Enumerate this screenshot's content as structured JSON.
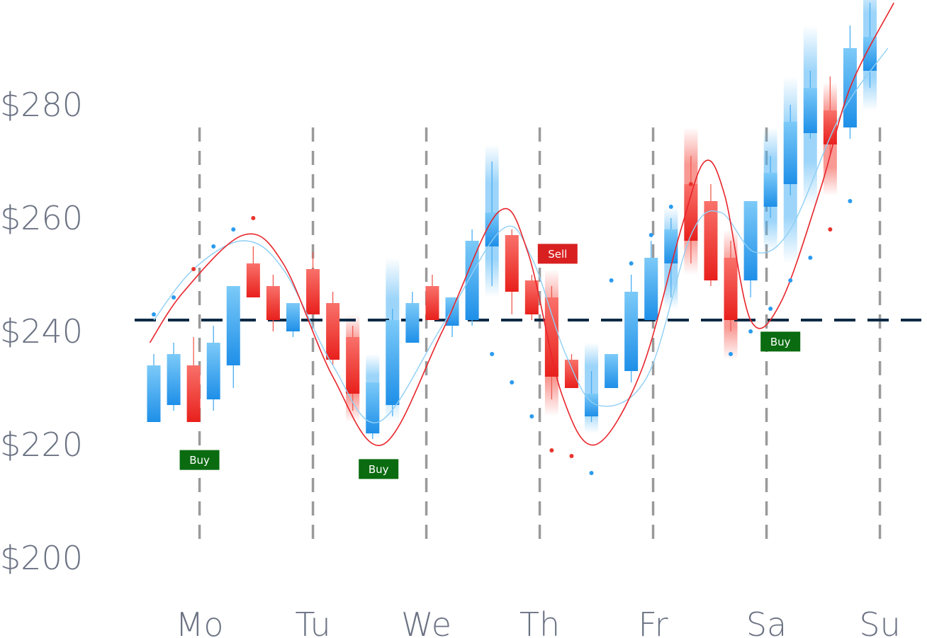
{
  "chart_data": {
    "type": "candlestick",
    "x_axis": {
      "tick_labels": [
        "Mo",
        "Tu",
        "We",
        "Th",
        "Fr",
        "Sa",
        "Su"
      ],
      "tick_positions": [
        2.3,
        8.0,
        13.7,
        19.4,
        25.1,
        30.8,
        36.5
      ]
    },
    "y_axis": {
      "tick_values": [
        200,
        220,
        240,
        260,
        280
      ],
      "tick_labels": [
        "$200",
        "$220",
        "$240",
        "$260",
        "$280"
      ],
      "range": [
        200,
        280
      ]
    },
    "grid": "dashed vertical lines at each day",
    "reference_line": {
      "value": 242,
      "style": "dashed",
      "color": "#0d2a45"
    },
    "colors": {
      "up": "#2196f3",
      "down": "#f03a2c",
      "trend": "#e8242a",
      "smooth": "#8fcff5",
      "buy_label": "#0a6b10",
      "sell_label": "#d92020"
    },
    "candles": [
      {
        "i": 0,
        "open": 224,
        "close": 234,
        "high": 236,
        "low": 224
      },
      {
        "i": 1,
        "open": 227,
        "close": 236,
        "high": 238,
        "low": 226
      },
      {
        "i": 2,
        "open": 234,
        "close": 224,
        "high": 239,
        "low": 224
      },
      {
        "i": 3,
        "open": 228,
        "close": 238,
        "high": 241,
        "low": 226
      },
      {
        "i": 4,
        "open": 234,
        "close": 248,
        "high": 248,
        "low": 230
      },
      {
        "i": 5,
        "open": 252,
        "close": 246,
        "high": 255,
        "low": 246
      },
      {
        "i": 6,
        "open": 248,
        "close": 242,
        "high": 250,
        "low": 240
      },
      {
        "i": 7,
        "open": 240,
        "close": 245,
        "high": 245,
        "low": 239
      },
      {
        "i": 8,
        "open": 251,
        "close": 243,
        "high": 254,
        "low": 243
      },
      {
        "i": 9,
        "open": 245,
        "close": 235,
        "high": 247,
        "low": 234
      },
      {
        "i": 10,
        "open": 239,
        "close": 229,
        "high": 241,
        "low": 226
      },
      {
        "i": 11,
        "open": 222,
        "close": 231,
        "high": 231,
        "low": 221
      },
      {
        "i": 12,
        "open": 227,
        "close": 242,
        "high": 244,
        "low": 225
      },
      {
        "i": 13,
        "open": 238,
        "close": 245,
        "high": 247,
        "low": 238
      },
      {
        "i": 14,
        "open": 248,
        "close": 242,
        "high": 250,
        "low": 242
      },
      {
        "i": 15,
        "open": 241,
        "close": 246,
        "high": 246,
        "low": 239
      },
      {
        "i": 16,
        "open": 242,
        "close": 256,
        "high": 258,
        "low": 241
      },
      {
        "i": 17,
        "open": 255,
        "close": 261,
        "high": 270,
        "low": 248
      },
      {
        "i": 18,
        "open": 257,
        "close": 247,
        "high": 258,
        "low": 243
      },
      {
        "i": 19,
        "open": 249,
        "close": 243,
        "high": 250,
        "low": 242
      },
      {
        "i": 20,
        "open": 246,
        "close": 232,
        "high": 248,
        "low": 228
      },
      {
        "i": 21,
        "open": 235,
        "close": 230,
        "high": 236,
        "low": 230
      },
      {
        "i": 22,
        "open": 225,
        "close": 229,
        "high": 233,
        "low": 224
      },
      {
        "i": 23,
        "open": 230,
        "close": 236,
        "high": 236,
        "low": 230
      },
      {
        "i": 24,
        "open": 233,
        "close": 247,
        "high": 250,
        "low": 231
      },
      {
        "i": 25,
        "open": 242,
        "close": 253,
        "high": 256,
        "low": 242
      },
      {
        "i": 26,
        "open": 252,
        "close": 258,
        "high": 260,
        "low": 246
      },
      {
        "i": 27,
        "open": 266,
        "close": 256,
        "high": 271,
        "low": 252
      },
      {
        "i": 28,
        "open": 263,
        "close": 249,
        "high": 266,
        "low": 248
      },
      {
        "i": 29,
        "open": 253,
        "close": 242,
        "high": 256,
        "low": 240
      },
      {
        "i": 30,
        "open": 249,
        "close": 263,
        "high": 263,
        "low": 246
      },
      {
        "i": 31,
        "open": 262,
        "close": 268,
        "high": 271,
        "low": 260
      },
      {
        "i": 32,
        "open": 266,
        "close": 277,
        "high": 280,
        "low": 264
      },
      {
        "i": 33,
        "open": 275,
        "close": 283,
        "high": 286,
        "low": 274
      },
      {
        "i": 34,
        "open": 279,
        "close": 273,
        "high": 285,
        "low": 271
      },
      {
        "i": 35,
        "open": 276,
        "close": 290,
        "high": 294,
        "low": 274
      },
      {
        "i": 36,
        "open": 286,
        "close": 292,
        "high": 298,
        "low": 283
      }
    ],
    "faded_bands": [
      {
        "i": 10,
        "low": 224,
        "high": 243
      },
      {
        "i": 11,
        "low": 221,
        "high": 236
      },
      {
        "i": 12,
        "low": 224,
        "high": 253
      },
      {
        "i": 17,
        "low": 246,
        "high": 273
      },
      {
        "i": 20,
        "low": 225,
        "high": 251
      },
      {
        "i": 22,
        "low": 222,
        "high": 238
      },
      {
        "i": 26,
        "low": 244,
        "high": 262
      },
      {
        "i": 27,
        "low": 250,
        "high": 276
      },
      {
        "i": 29,
        "low": 235,
        "high": 258
      },
      {
        "i": 31,
        "low": 254,
        "high": 276
      },
      {
        "i": 32,
        "low": 252,
        "high": 285
      },
      {
        "i": 33,
        "low": 262,
        "high": 294
      },
      {
        "i": 34,
        "low": 264,
        "high": 284
      },
      {
        "i": 36,
        "low": 279,
        "high": 302
      }
    ],
    "trend_line": [
      {
        "x": -0.2,
        "y": 238
      },
      {
        "x": 1.5,
        "y": 247
      },
      {
        "x": 4.5,
        "y": 257
      },
      {
        "x": 6.5,
        "y": 252
      },
      {
        "x": 9.0,
        "y": 232
      },
      {
        "x": 11.5,
        "y": 220
      },
      {
        "x": 14.5,
        "y": 240
      },
      {
        "x": 17.3,
        "y": 261
      },
      {
        "x": 18.8,
        "y": 254
      },
      {
        "x": 20.5,
        "y": 229
      },
      {
        "x": 22.2,
        "y": 220
      },
      {
        "x": 24.5,
        "y": 233
      },
      {
        "x": 26.5,
        "y": 258
      },
      {
        "x": 27.7,
        "y": 270
      },
      {
        "x": 28.7,
        "y": 264
      },
      {
        "x": 30.0,
        "y": 242
      },
      {
        "x": 31.5,
        "y": 245
      },
      {
        "x": 33.5,
        "y": 265
      },
      {
        "x": 35.0,
        "y": 283
      },
      {
        "x": 37.2,
        "y": 298
      }
    ],
    "smooth_line": [
      {
        "x": 0,
        "y": 242
      },
      {
        "x": 2.0,
        "y": 251
      },
      {
        "x": 4.5,
        "y": 256
      },
      {
        "x": 6.5,
        "y": 251
      },
      {
        "x": 9.0,
        "y": 234
      },
      {
        "x": 11.3,
        "y": 224
      },
      {
        "x": 14.5,
        "y": 241
      },
      {
        "x": 17.5,
        "y": 258
      },
      {
        "x": 19.0,
        "y": 253
      },
      {
        "x": 20.7,
        "y": 236
      },
      {
        "x": 22.3,
        "y": 227
      },
      {
        "x": 24.8,
        "y": 232
      },
      {
        "x": 27.0,
        "y": 257
      },
      {
        "x": 28.5,
        "y": 261
      },
      {
        "x": 30.2,
        "y": 254
      },
      {
        "x": 32.0,
        "y": 258
      },
      {
        "x": 34.5,
        "y": 278
      },
      {
        "x": 36.9,
        "y": 290
      }
    ],
    "dots": [
      {
        "i": 0,
        "v": 243,
        "c": "up"
      },
      {
        "i": 1,
        "v": 246,
        "c": "up"
      },
      {
        "i": 2,
        "v": 251,
        "c": "down"
      },
      {
        "i": 3,
        "v": 255,
        "c": "up"
      },
      {
        "i": 4,
        "v": 258,
        "c": "up"
      },
      {
        "i": 5,
        "v": 260,
        "c": "down"
      },
      {
        "i": 17,
        "v": 236,
        "c": "up"
      },
      {
        "i": 18,
        "v": 231,
        "c": "up"
      },
      {
        "i": 19,
        "v": 225,
        "c": "up"
      },
      {
        "i": 20,
        "v": 219,
        "c": "down"
      },
      {
        "i": 21,
        "v": 218,
        "c": "down"
      },
      {
        "i": 22,
        "v": 215,
        "c": "up"
      },
      {
        "i": 23,
        "v": 249,
        "c": "up"
      },
      {
        "i": 24,
        "v": 252,
        "c": "up"
      },
      {
        "i": 25,
        "v": 257,
        "c": "up"
      },
      {
        "i": 26,
        "v": 262,
        "c": "up"
      },
      {
        "i": 27,
        "v": 266,
        "c": "down"
      },
      {
        "i": 29,
        "v": 236,
        "c": "up"
      },
      {
        "i": 30,
        "v": 240,
        "c": "up"
      },
      {
        "i": 31,
        "v": 244,
        "c": "up"
      },
      {
        "i": 32,
        "v": 249,
        "c": "up"
      },
      {
        "i": 33,
        "v": 253,
        "c": "up"
      },
      {
        "i": 34,
        "v": 258,
        "c": "down"
      },
      {
        "i": 35,
        "v": 263,
        "c": "up"
      }
    ],
    "signals": [
      {
        "label": "Buy",
        "i": 2.3,
        "v": 217.3,
        "type": "buy"
      },
      {
        "label": "Buy",
        "i": 11.3,
        "v": 215.7,
        "type": "buy"
      },
      {
        "label": "Sell",
        "i": 20.3,
        "v": 253.7,
        "type": "sell"
      },
      {
        "label": "Buy",
        "i": 31.5,
        "v": 238.2,
        "type": "buy"
      }
    ]
  }
}
